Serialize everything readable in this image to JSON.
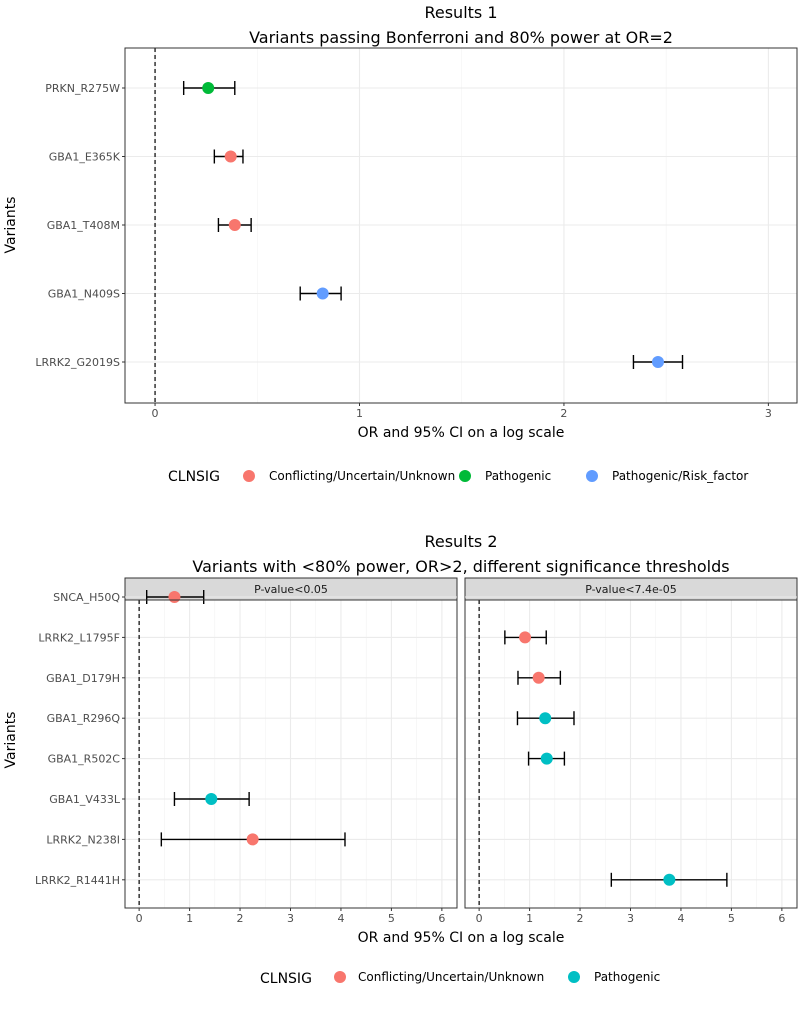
{
  "colors": {
    "Conflicting/Uncertain/Unknown": "#F8766D",
    "Pathogenic_3": "#00BA38",
    "Pathogenic/Risk_factor": "#619CFF",
    "Pathogenic_2": "#00BFC4"
  },
  "chart_data": [
    {
      "type": "scatter",
      "title": "Results 1",
      "subtitle": "Variants passing Bonferroni and 80% power at OR=2",
      "xlabel": "OR and 95% CI on a log scale",
      "ylabel": "Variants",
      "xlim": [
        -0.147,
        3.14
      ],
      "xticks": [
        "0",
        "1",
        "2",
        "3"
      ],
      "reference_line": 0,
      "legend_title": "CLNSIG",
      "legend": [
        "Conflicting/Uncertain/Unknown",
        "Pathogenic",
        "Pathogenic/Risk_factor"
      ],
      "legend_colors": [
        "#F8766D",
        "#00BA38",
        "#619CFF"
      ],
      "legend_position": "bottom",
      "categories": [
        "PRKN_R275W",
        "GBA1_E365K",
        "GBA1_T408M",
        "GBA1_N409S",
        "LRRK2_G2019S"
      ],
      "points": [
        {
          "variant": "PRKN_R275W",
          "or": 0.26,
          "low": 0.14,
          "high": 0.39,
          "clnsig": 1
        },
        {
          "variant": "GBA1_E365K",
          "or": 0.37,
          "low": 0.29,
          "high": 0.43,
          "clnsig": 0
        },
        {
          "variant": "GBA1_T408M",
          "or": 0.39,
          "low": 0.31,
          "high": 0.47,
          "clnsig": 0
        },
        {
          "variant": "GBA1_N409S",
          "or": 0.82,
          "low": 0.71,
          "high": 0.91,
          "clnsig": 2
        },
        {
          "variant": "LRRK2_G2019S",
          "or": 2.46,
          "low": 2.34,
          "high": 2.58,
          "clnsig": 2
        }
      ]
    },
    {
      "type": "scatter",
      "title": "Results 2",
      "subtitle": "Variants with <80% power, OR>2, different significance thresholds",
      "xlabel": "OR and 95% CI on a log scale",
      "ylabel": "Variants",
      "xlim": [
        -0.28,
        6.3
      ],
      "xticks": [
        "0",
        "1",
        "2",
        "3",
        "4",
        "5",
        "6"
      ],
      "reference_line": 0,
      "legend_title": "CLNSIG",
      "legend": [
        "Conflicting/Uncertain/Unknown",
        "Pathogenic"
      ],
      "legend_colors": [
        "#F8766D",
        "#00BFC4"
      ],
      "legend_position": "bottom",
      "categories": [
        "SNCA_H50Q",
        "LRRK2_L1795F",
        "GBA1_D179H",
        "GBA1_R296Q",
        "GBA1_R502C",
        "GBA1_V433L",
        "LRRK2_N238I",
        "LRRK2_R1441H"
      ],
      "facets": [
        {
          "label": "P-value<0.05",
          "points": [
            {
              "variant": "SNCA_H50Q",
              "or": 0.7,
              "low": 0.15,
              "high": 1.28,
              "clnsig": 0
            },
            {
              "variant": "GBA1_V433L",
              "or": 1.43,
              "low": 0.7,
              "high": 2.18,
              "clnsig": 1
            },
            {
              "variant": "LRRK2_N238I",
              "or": 2.25,
              "low": 0.44,
              "high": 4.08,
              "clnsig": 0
            }
          ]
        },
        {
          "label": "P-value<7.4e-05",
          "points": [
            {
              "variant": "LRRK2_L1795F",
              "or": 0.91,
              "low": 0.51,
              "high": 1.33,
              "clnsig": 0
            },
            {
              "variant": "GBA1_D179H",
              "or": 1.18,
              "low": 0.77,
              "high": 1.61,
              "clnsig": 0
            },
            {
              "variant": "GBA1_R296Q",
              "or": 1.31,
              "low": 0.76,
              "high": 1.88,
              "clnsig": 1
            },
            {
              "variant": "GBA1_R502C",
              "or": 1.34,
              "low": 0.98,
              "high": 1.69,
              "clnsig": 1
            },
            {
              "variant": "LRRK2_R1441H",
              "or": 3.77,
              "low": 2.62,
              "high": 4.91,
              "clnsig": 1
            }
          ]
        }
      ]
    }
  ]
}
